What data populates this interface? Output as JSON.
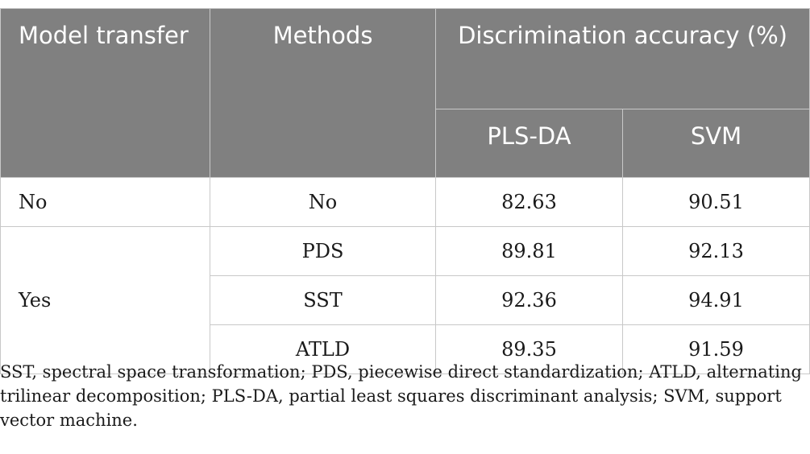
{
  "table": {
    "headers": {
      "model_transfer": "Model transfer",
      "methods": "Methods",
      "accuracy": "Discrimination accuracy (%)",
      "pls_da": "PLS-DA",
      "svm": "SVM"
    },
    "rows": [
      {
        "model_transfer": "No",
        "method": "No",
        "pls_da": "82.63",
        "svm": "90.51"
      },
      {
        "model_transfer": "Yes",
        "method": "PDS",
        "pls_da": "89.81",
        "svm": "92.13"
      },
      {
        "method": "SST",
        "pls_da": "92.36",
        "svm": "94.91"
      },
      {
        "method": "ATLD",
        "pls_da": "89.35",
        "svm": "91.59"
      }
    ]
  },
  "footnote": "SST, spectral space transformation; PDS, piecewise direct standardization; ATLD, alternating trilinear decomposition; PLS-DA, partial least squares discriminant analysis; SVM, support vector machine."
}
